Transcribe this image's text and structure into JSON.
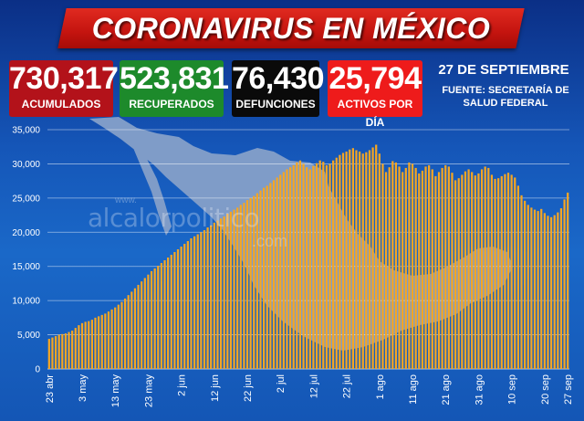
{
  "header": {
    "title": "CORONAVIRUS EN MÉXICO",
    "date": "27 DE SEPTIEMBRE",
    "source_line1": "FUENTE: SECRETARÍA DE",
    "source_line2": "SALUD FEDERAL"
  },
  "stats": [
    {
      "value": "730,317",
      "label": "ACUMULADOS",
      "color": "#b3121a"
    },
    {
      "value": "523,831",
      "label": "RECUPERADOS",
      "color": "#1d8a2b"
    },
    {
      "value": "76,430",
      "label": "DEFUNCIONES",
      "color": "#0a0a0a"
    },
    {
      "value": "25,794",
      "label": "ACTIVOS POR DÍA",
      "color": "#ee1b1b"
    }
  ],
  "watermark": {
    "small": "www.",
    "main": "alcalorpolitico",
    "com": ".com"
  },
  "colors": {
    "bar": "#f5a623",
    "grid": "#ffffff",
    "map": "#7f9cc8"
  },
  "chart_data": {
    "type": "bar",
    "ylim": [
      0,
      35000
    ],
    "yticks": [
      "0",
      "5,000",
      "10,000",
      "15,000",
      "20,000",
      "25,000",
      "30,000",
      "35,000"
    ],
    "xticks": [
      "23 abr",
      "3 may",
      "13 may",
      "23 may",
      "2 jun",
      "12 jun",
      "22 jun",
      "2 jul",
      "12 jul",
      "22 jul",
      "1 ago",
      "11 ago",
      "21 ago",
      "31 ago",
      "10 sep",
      "20 sep",
      "27 sep"
    ],
    "xtick_day_index": [
      0,
      10,
      20,
      30,
      40,
      50,
      60,
      70,
      80,
      90,
      100,
      110,
      120,
      130,
      140,
      150,
      157
    ],
    "values": [
      4400,
      4600,
      4800,
      5000,
      5100,
      5200,
      5400,
      5600,
      6000,
      6400,
      6700,
      6900,
      7000,
      7200,
      7500,
      7700,
      7900,
      8100,
      8400,
      8700,
      9000,
      9400,
      9800,
      10300,
      10800,
      11300,
      11800,
      12300,
      12800,
      13300,
      13800,
      14300,
      14700,
      15100,
      15500,
      15900,
      16300,
      16700,
      17100,
      17500,
      17900,
      18300,
      18700,
      19100,
      19400,
      19700,
      20000,
      20300,
      20700,
      21000,
      21400,
      21700,
      22000,
      22300,
      22700,
      23000,
      23300,
      23600,
      24000,
      24300,
      24700,
      25000,
      25300,
      25700,
      26100,
      26500,
      26800,
      27200,
      27600,
      28000,
      28400,
      28800,
      29200,
      29500,
      29800,
      30200,
      30500,
      30000,
      29500,
      29200,
      29700,
      30100,
      30500,
      30300,
      29800,
      30000,
      30500,
      30900,
      31300,
      31600,
      31800,
      32100,
      32300,
      32000,
      31800,
      31500,
      31700,
      32000,
      32400,
      32800,
      31500,
      30000,
      28800,
      29500,
      30400,
      30200,
      29600,
      28800,
      29400,
      30200,
      30000,
      29400,
      28600,
      29000,
      29600,
      29800,
      29200,
      28200,
      28800,
      29400,
      29800,
      29600,
      28700,
      27600,
      27900,
      28400,
      28900,
      29200,
      28800,
      28300,
      28600,
      29200,
      29600,
      29400,
      28400,
      27800,
      27900,
      28200,
      28500,
      28700,
      28400,
      28000,
      26800,
      25400,
      24600,
      24000,
      23600,
      23300,
      23100,
      23400,
      22800,
      22400,
      22200,
      22500,
      22900,
      23500,
      24800,
      25794
    ]
  }
}
